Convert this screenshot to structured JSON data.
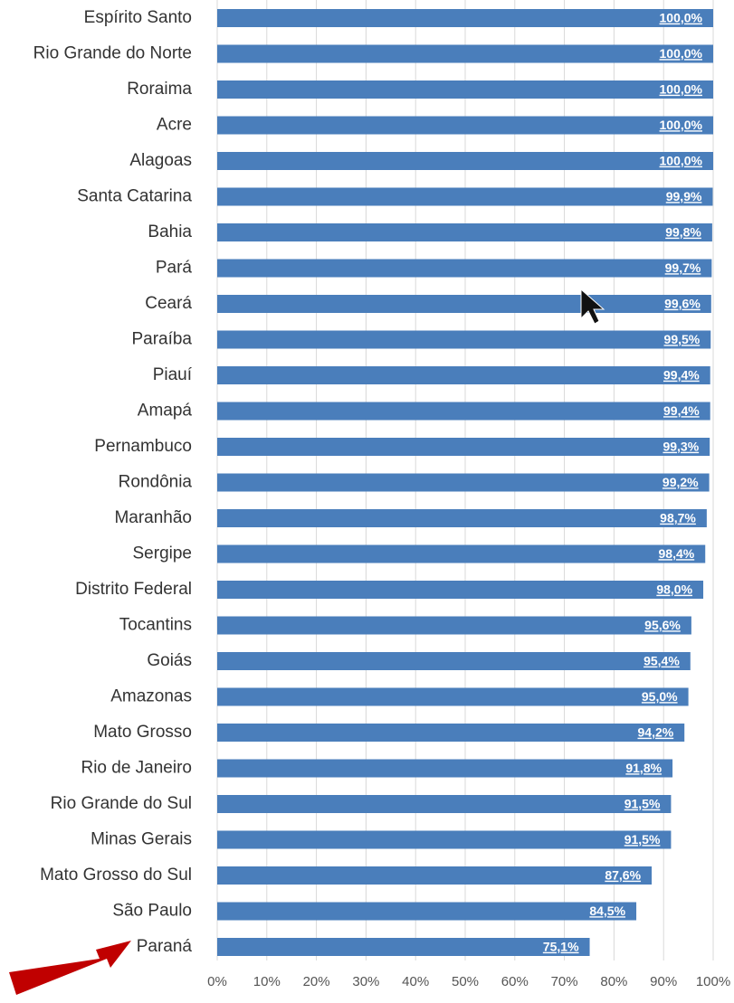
{
  "chart_data": {
    "type": "barh",
    "categories": [
      "Espírito Santo",
      "Rio Grande do Norte",
      "Roraima",
      "Acre",
      "Alagoas",
      "Santa Catarina",
      "Bahia",
      "Pará",
      "Ceará",
      "Paraíba",
      "Piauí",
      "Amapá",
      "Pernambuco",
      "Rondônia",
      "Maranhão",
      "Sergipe",
      "Distrito Federal",
      "Tocantins",
      "Goiás",
      "Amazonas",
      "Mato Grosso",
      "Rio de Janeiro",
      "Rio Grande do Sul",
      "Minas Gerais",
      "Mato Grosso do Sul",
      "São Paulo",
      "Paraná"
    ],
    "values": [
      100,
      100,
      100,
      100,
      100,
      99.9,
      99.8,
      99.7,
      99.6,
      99.5,
      99.4,
      99.4,
      99.3,
      99.2,
      98.7,
      98.4,
      98.0,
      95.6,
      95.4,
      95.0,
      94.2,
      91.8,
      91.5,
      91.5,
      87.6,
      84.5,
      75.1
    ],
    "value_labels": [
      "100,0%",
      "100,0%",
      "100,0%",
      "100,0%",
      "100,0%",
      "99,9%",
      "99,8%",
      "99,7%",
      "99,6%",
      "99,5%",
      "99,4%",
      "99,4%",
      "99,3%",
      "99,2%",
      "98,7%",
      "98,4%",
      "98,0%",
      "95,6%",
      "95,4%",
      "95,0%",
      "94,2%",
      "91,8%",
      "91,5%",
      "91,5%",
      "87,6%",
      "84,5%",
      "75,1%"
    ],
    "color": "#4a7ebb",
    "xlim": [
      0,
      100
    ],
    "xticks": [
      {
        "value": 0,
        "label": "0%"
      },
      {
        "value": 10,
        "label": "10%"
      },
      {
        "value": 20,
        "label": "20%"
      },
      {
        "value": 30,
        "label": "30%"
      },
      {
        "value": 40,
        "label": "40%"
      },
      {
        "value": 50,
        "label": "50%"
      },
      {
        "value": 60,
        "label": "60%"
      },
      {
        "value": 70,
        "label": "70%"
      },
      {
        "value": 80,
        "label": "80%"
      },
      {
        "value": 90,
        "label": "90%"
      },
      {
        "value": 100,
        "label": "100%"
      }
    ],
    "grid": true
  }
}
